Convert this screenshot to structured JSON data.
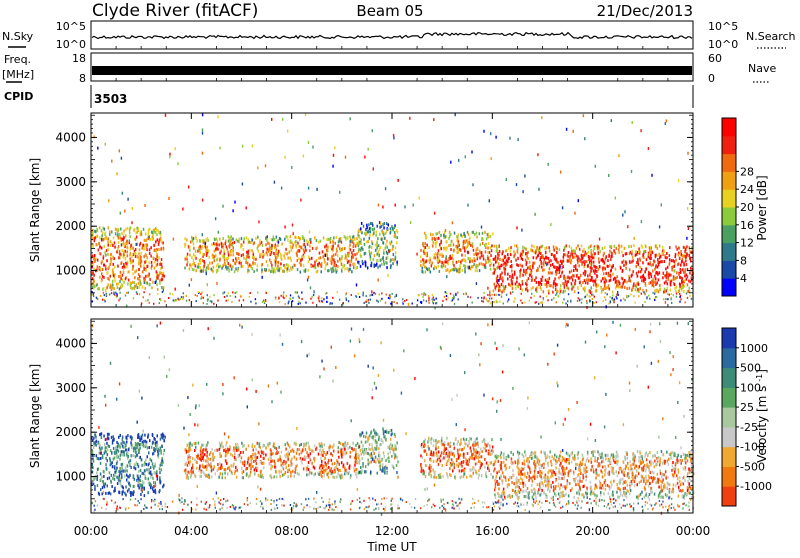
{
  "header": {
    "station": "Clyde River (fitACF)",
    "beam": "Beam 05",
    "date": "21/Dec/2013"
  },
  "noise_panel": {
    "left_label": "N.Sky",
    "right_label": "N.Search",
    "left_ticks": [
      "10^5",
      "10^0"
    ],
    "right_ticks": [
      "10^5",
      "10^0"
    ]
  },
  "freq_panel": {
    "left_label_line1": "Freq.",
    "left_label_line2": "[MHz]",
    "left_ticks": [
      "18",
      "8"
    ],
    "right_label": "Nave",
    "right_ticks": [
      "60",
      "0"
    ]
  },
  "cpid_panel": {
    "label": "CPID",
    "value": "3503"
  },
  "colors": {
    "power": [
      "#0000ff",
      "#1a4aa8",
      "#2e7a8a",
      "#4aa060",
      "#8ccc3c",
      "#e8d020",
      "#f0a010",
      "#f06a10",
      "#f02010",
      "#ff0000"
    ],
    "velocity": [
      "#1a3ab0",
      "#2a6aa0",
      "#3c8c78",
      "#5aa860",
      "#a8c8a0",
      "#c8c8c8",
      "#f0a830",
      "#f07a10",
      "#f04010",
      "#ff0000"
    ]
  },
  "chart_data": [
    {
      "type": "heatmap",
      "name": "power",
      "xlabel": "",
      "ylabel": "Slant Range [km]",
      "x_ticks": [
        "00:00",
        "04:00",
        "08:00",
        "12:00",
        "16:00",
        "20:00",
        "00:00"
      ],
      "x_range_hours": [
        0,
        24
      ],
      "y_ticks": [
        1000,
        2000,
        3000,
        4000
      ],
      "ylim": [
        180,
        4550
      ],
      "colorbar_label": "Power [dB]",
      "colorbar_ticks": [
        "4",
        "8",
        "12",
        "16",
        "20",
        "24",
        "28"
      ],
      "colorbar_range": [
        0,
        30
      ],
      "bands": [
        {
          "t0": 0.0,
          "t1": 2.9,
          "r0": 600,
          "r1": 2000,
          "level": 0.75
        },
        {
          "t0": 3.7,
          "t1": 10.6,
          "r0": 1000,
          "r1": 1800,
          "level": 0.7
        },
        {
          "t0": 10.6,
          "t1": 12.2,
          "r0": 1100,
          "r1": 2100,
          "level": 0.45
        },
        {
          "t0": 13.1,
          "t1": 16.0,
          "r0": 1000,
          "r1": 1900,
          "level": 0.7
        },
        {
          "t0": 16.0,
          "t1": 24.0,
          "r0": 550,
          "r1": 1600,
          "level": 0.9
        }
      ]
    },
    {
      "type": "heatmap",
      "name": "velocity",
      "xlabel": "Time UT",
      "ylabel": "Slant Range [km]",
      "x_ticks": [
        "00:00",
        "04:00",
        "08:00",
        "12:00",
        "16:00",
        "20:00",
        "00:00"
      ],
      "x_range_hours": [
        0,
        24
      ],
      "y_ticks": [
        1000,
        2000,
        3000,
        4000
      ],
      "ylim": [
        180,
        4550
      ],
      "colorbar_label": "Velocity [m s^-1]",
      "colorbar_ticks": [
        "1000",
        "500",
        "100",
        "25",
        "-25",
        "-100",
        "-500",
        "-1000"
      ],
      "bands": [
        {
          "t0": 0.0,
          "t1": 2.9,
          "r0": 600,
          "r1": 2000,
          "level": 0.25
        },
        {
          "t0": 3.7,
          "t1": 10.6,
          "r0": 1000,
          "r1": 1800,
          "level": 0.75
        },
        {
          "t0": 10.6,
          "t1": 12.2,
          "r0": 1100,
          "r1": 2100,
          "level": 0.5
        },
        {
          "t0": 13.1,
          "t1": 16.0,
          "r0": 1000,
          "r1": 1900,
          "level": 0.75
        },
        {
          "t0": 16.0,
          "t1": 24.0,
          "r0": 550,
          "r1": 1600,
          "level": 0.7
        }
      ]
    }
  ]
}
